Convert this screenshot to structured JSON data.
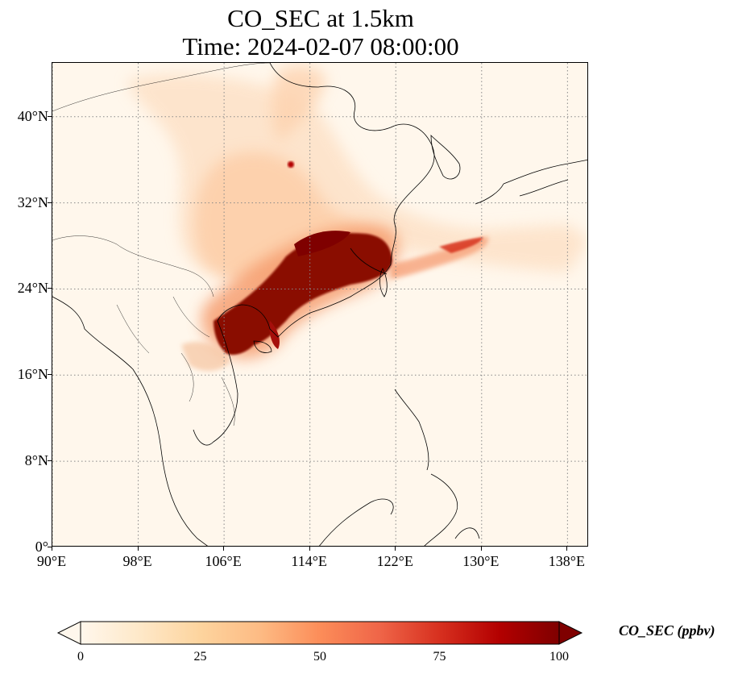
{
  "title": {
    "line1": "CO_SEC at 1.5km",
    "line2": "Time: 2024-02-07 08:00:00"
  },
  "map": {
    "extent": {
      "lon_min": 90,
      "lon_max": 140,
      "lat_min": 0,
      "lat_max": 45
    },
    "gridlines": true,
    "gridline_style": "dotted",
    "field": "CO_SEC",
    "high_concentration_region": "Southern China coast and Taiwan Strait",
    "lat_ticks": [
      {
        "value": 0,
        "label": "0°"
      },
      {
        "value": 8,
        "label": "8°N"
      },
      {
        "value": 16,
        "label": "16°N"
      },
      {
        "value": 24,
        "label": "24°N"
      },
      {
        "value": 32,
        "label": "32°N"
      },
      {
        "value": 40,
        "label": "40°N"
      }
    ],
    "lon_ticks": [
      {
        "value": 90,
        "label": "90°E"
      },
      {
        "value": 98,
        "label": "98°E"
      },
      {
        "value": 106,
        "label": "106°E"
      },
      {
        "value": 114,
        "label": "114°E"
      },
      {
        "value": 122,
        "label": "122°E"
      },
      {
        "value": 130,
        "label": "130°E"
      },
      {
        "value": 138,
        "label": "138°E"
      }
    ]
  },
  "colorbar": {
    "label": "CO_SEC (ppbv)",
    "colormap": "OrRd",
    "min": 0,
    "max": 100,
    "extend": "both",
    "colors": [
      "#fff7ec",
      "#fee8c8",
      "#fdd49e",
      "#fdbb84",
      "#fc8d59",
      "#ef6548",
      "#d7301f",
      "#b30000",
      "#7f0000"
    ],
    "ticks": [
      {
        "value": 0,
        "label": "0"
      },
      {
        "value": 25,
        "label": "25"
      },
      {
        "value": 50,
        "label": "50"
      },
      {
        "value": 75,
        "label": "75"
      },
      {
        "value": 100,
        "label": "100"
      }
    ]
  }
}
